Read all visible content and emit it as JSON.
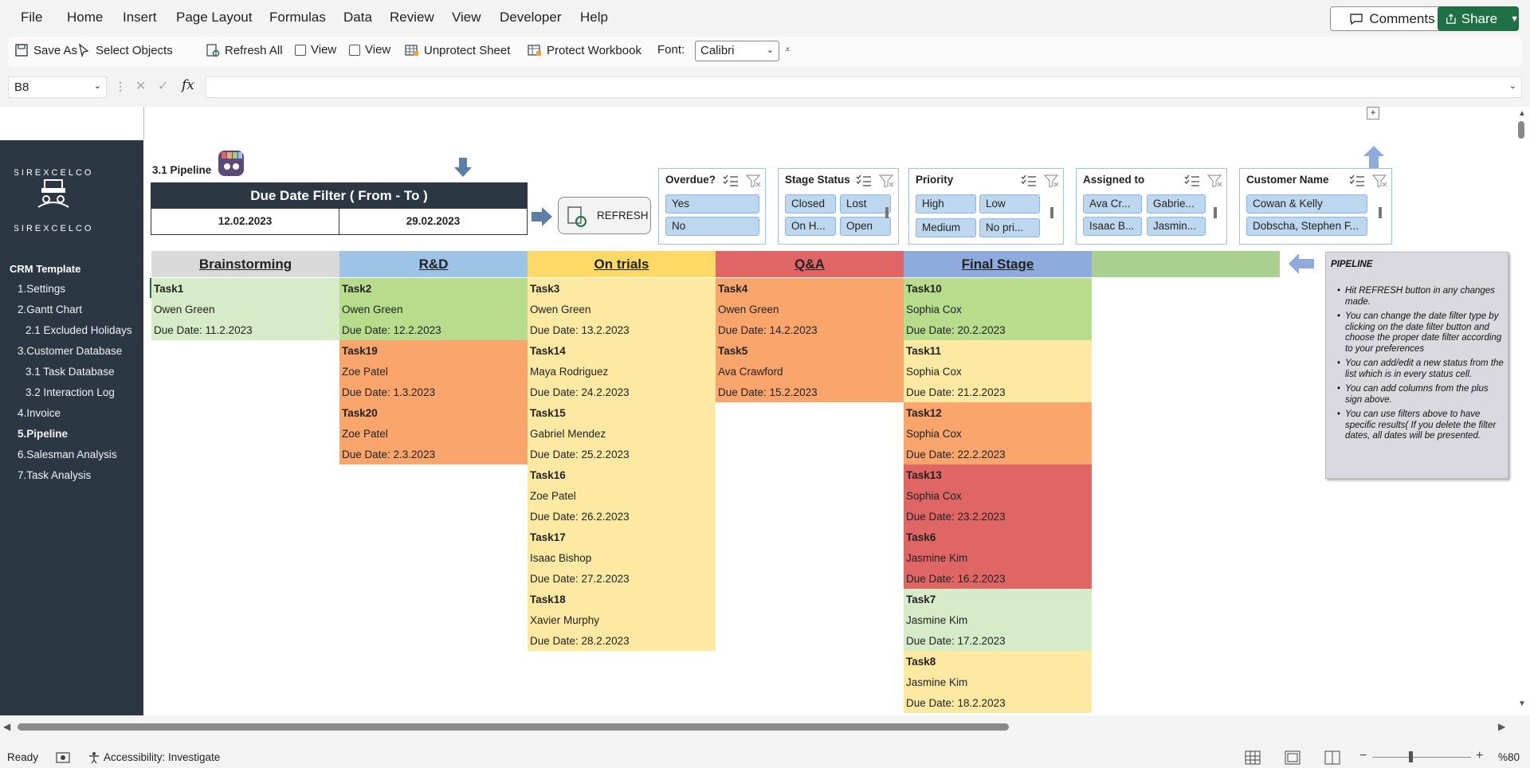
{
  "menu": [
    "File",
    "Home",
    "Insert",
    "Page Layout",
    "Formulas",
    "Data",
    "Review",
    "View",
    "Developer",
    "Help"
  ],
  "comments_label": "Comments",
  "share_label": "Share",
  "toolbar": {
    "save_as": "Save As",
    "select_objects": "Select Objects",
    "refresh_all": "Refresh All",
    "view1": "View",
    "view2": "View",
    "unprotect_sheet": "Unprotect Sheet",
    "protect_workbook": "Protect Workbook",
    "font_label": "Font:",
    "font_value": "Calibri"
  },
  "formula": {
    "cell_ref": "B8",
    "fx": "fx",
    "value": ""
  },
  "sidebar": {
    "title": "CRM Template",
    "logo_text": "SIREXCELCO",
    "items": [
      {
        "label": "1.Settings",
        "bold": false
      },
      {
        "label": "2.Gantt Chart",
        "bold": false
      },
      {
        "label": "2.1 Excluded Holidays",
        "bold": false
      },
      {
        "label": "3.Customer Database",
        "bold": false
      },
      {
        "label": "3.1 Task Database",
        "bold": false
      },
      {
        "label": "3.2 Interaction Log",
        "bold": false
      },
      {
        "label": "4.Invoice",
        "bold": false
      },
      {
        "label": "5.Pipeline",
        "bold": true
      },
      {
        "label": "6.Salesman Analysis",
        "bold": false
      },
      {
        "label": "7.Task Analysis",
        "bold": false
      }
    ]
  },
  "pipeline_title": "3.1 Pipeline",
  "date_filter": {
    "title": "Due Date Filter ( From - To )",
    "from": "12.02.2023",
    "to": "29.02.2023"
  },
  "refresh_label": "REFRESH",
  "slicers": [
    {
      "title": "Overdue?",
      "options": [
        "Yes",
        "No"
      ]
    },
    {
      "title": "Stage Status",
      "options": [
        "Closed",
        "Lost",
        "On H...",
        "Open"
      ]
    },
    {
      "title": "Priority",
      "options": [
        "High",
        "Low",
        "Medium",
        "No pri..."
      ]
    },
    {
      "title": "Assigned to",
      "options": [
        "Ava Cr...",
        "Gabrie...",
        "Isaac B...",
        "Jasmin..."
      ]
    },
    {
      "title": "Customer Name",
      "options": [
        "Cowan & Kelly",
        "Dobscha, Stephen F..."
      ]
    }
  ],
  "columns": [
    {
      "title": "Brainstorming",
      "color": "#d9d9d9",
      "cards": [
        {
          "task": "Task1",
          "name": "Owen Green",
          "due": "Due Date: 11.2.2023",
          "color": "#d6ebc8"
        }
      ]
    },
    {
      "title": "R&D",
      "color": "#9dc3e6",
      "cards": [
        {
          "task": "Task2",
          "name": "Owen Green",
          "due": "Due Date: 12.2.2023",
          "color": "#b6dc8c"
        },
        {
          "task": "Task19",
          "name": "Zoe Patel",
          "due": "Due Date: 1.3.2023",
          "color": "#f9a56b"
        },
        {
          "task": "Task20",
          "name": "Zoe Patel",
          "due": "Due Date: 2.3.2023",
          "color": "#f9a56b"
        }
      ]
    },
    {
      "title": "On trials",
      "color": "#ffd966",
      "cards": [
        {
          "task": "Task3",
          "name": "Owen Green",
          "due": "Due Date: 13.2.2023",
          "color": "#fde9a2"
        },
        {
          "task": "Task14",
          "name": "Maya Rodriguez",
          "due": "Due Date: 24.2.2023",
          "color": "#fde9a2"
        },
        {
          "task": "Task15",
          "name": "Gabriel Mendez",
          "due": "Due Date: 25.2.2023",
          "color": "#fde9a2"
        },
        {
          "task": "Task16",
          "name": "Zoe Patel",
          "due": "Due Date: 26.2.2023",
          "color": "#fde9a2"
        },
        {
          "task": "Task17",
          "name": "Isaac Bishop",
          "due": "Due Date: 27.2.2023",
          "color": "#fde9a2"
        },
        {
          "task": "Task18",
          "name": "Xavier Murphy",
          "due": "Due Date: 28.2.2023",
          "color": "#fde9a2"
        }
      ]
    },
    {
      "title": "Q&A",
      "color": "#e06666",
      "cards": [
        {
          "task": "Task4",
          "name": "Owen Green",
          "due": "Due Date: 14.2.2023",
          "color": "#f9a56b"
        },
        {
          "task": "Task5",
          "name": "Ava Crawford",
          "due": "Due Date: 15.2.2023",
          "color": "#f9a56b"
        }
      ]
    },
    {
      "title": "Final Stage",
      "color": "#8faadc",
      "cards": [
        {
          "task": "Task10",
          "name": "Sophia Cox",
          "due": "Due Date: 20.2.2023",
          "color": "#b6dc8c"
        },
        {
          "task": "Task11",
          "name": "Sophia Cox",
          "due": "Due Date: 21.2.2023",
          "color": "#fde9a2"
        },
        {
          "task": "Task12",
          "name": "Sophia Cox",
          "due": "Due Date: 22.2.2023",
          "color": "#f9a56b"
        },
        {
          "task": "Task13",
          "name": "Sophia Cox",
          "due": "Due Date: 23.2.2023",
          "color": "#e06666"
        },
        {
          "task": "Task6",
          "name": "Jasmine Kim",
          "due": "Due Date: 16.2.2023",
          "color": "#e06666"
        },
        {
          "task": "Task7",
          "name": "Jasmine Kim",
          "due": "Due Date: 17.2.2023",
          "color": "#d6ebc8"
        },
        {
          "task": "Task8",
          "name": "Jasmine Kim",
          "due": "Due Date: 18.2.2023",
          "color": "#fde9a2"
        }
      ]
    },
    {
      "title": "",
      "color": "#a9d08e",
      "cards": []
    }
  ],
  "note": {
    "title": "PIPELINE",
    "bullets": [
      "Hit REFRESH button in any changes made.",
      "You can change the date filter type by clicking on the date filter button and choose the proper date filter according to your preferences",
      "You can add/edit a new status from the list which is in every status cell.",
      "You can add columns from the plus sign above.",
      "You can use filters above to have specific results( If you delete the filter dates, all dates will be presented."
    ]
  },
  "status": {
    "ready": "Ready",
    "accessibility": "Accessibility: Investigate",
    "zoom": "%80"
  }
}
